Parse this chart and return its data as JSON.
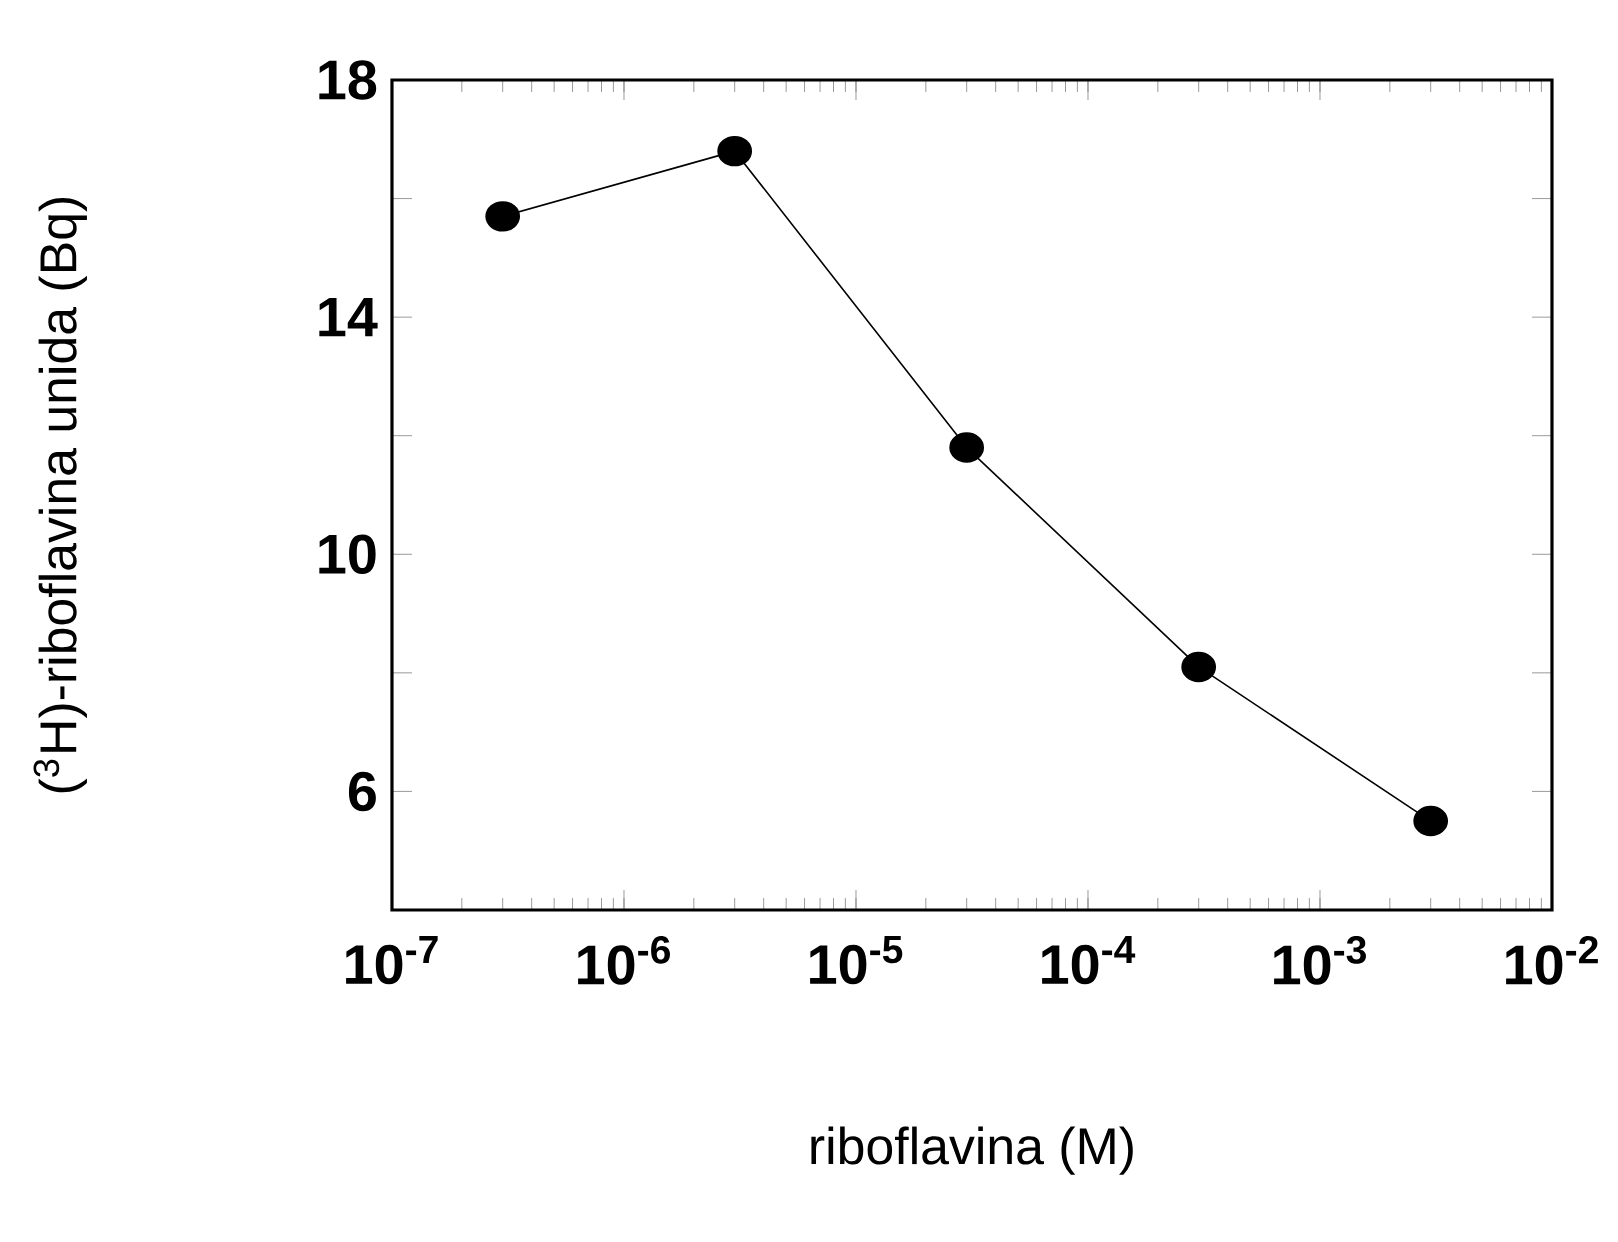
{
  "chart_data": {
    "type": "line",
    "xlabel": "riboflavina (M)",
    "ylabel": "($^{3}$H)-riboflavina unida (Bq)",
    "log": "x",
    "marker": "circle",
    "line_style": "solid",
    "x": [
      3e-07,
      3e-06,
      3e-05,
      0.0003,
      0.003
    ],
    "series": [
      {
        "color": "#000000",
        "values": [
          15.7,
          16.8,
          11.8,
          8.1,
          5.5
        ]
      }
    ],
    "xlim": [
      1e-07,
      0.01
    ],
    "xticks": [
      {
        "value": 1e-07,
        "label": "10$^{-7}$"
      },
      {
        "value": 1e-06,
        "label": "10$^{-6}$"
      },
      {
        "value": 1e-05,
        "label": "10$^{-5}$"
      },
      {
        "value": 0.0001,
        "label": "10$^{-4}$"
      },
      {
        "value": 0.001,
        "label": "10$^{-3}$"
      },
      {
        "value": 0.01,
        "label": "10$^{-2}$"
      }
    ],
    "ylim": [
      4,
      18
    ],
    "yticks": [
      6,
      {
        "value": 8,
        "label": null
      },
      10,
      {
        "value": 12,
        "label": null
      },
      14,
      {
        "value": 16,
        "label": null
      },
      18
    ]
  }
}
